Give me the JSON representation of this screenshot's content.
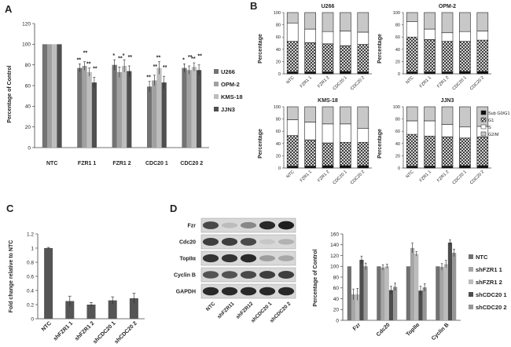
{
  "panels": {
    "A": "A",
    "B": "B",
    "C": "C",
    "D": "D"
  },
  "colors": {
    "series": [
      "#737373",
      "#a0a0a0",
      "#bdbdbd",
      "#4f4f4f"
    ],
    "d_series": [
      "#707070",
      "#a6a6a6",
      "#bcbcbc",
      "#4d4d4d",
      "#969696"
    ],
    "bar_c": "#555555"
  },
  "chart_data": [
    {
      "id": "A",
      "type": "bar",
      "ylabel": "Percentage of Control",
      "ylim": [
        0,
        120
      ],
      "yticks": [
        0,
        20,
        40,
        60,
        80,
        100,
        120
      ],
      "categories": [
        "NTC",
        "FZR1 1",
        "FZR1 2",
        "CDC20 1",
        "CDC20 2"
      ],
      "series": [
        {
          "name": "U266",
          "values": [
            100,
            77,
            80,
            59,
            77
          ],
          "errors": [
            0,
            4,
            5,
            5,
            4
          ]
        },
        {
          "name": "OPM-2",
          "values": [
            100,
            79,
            73,
            65,
            75
          ],
          "errors": [
            0,
            4,
            5,
            5,
            4
          ]
        },
        {
          "name": "KMS-18",
          "values": [
            100,
            73,
            79,
            77,
            78
          ],
          "errors": [
            0,
            4,
            6,
            6,
            4
          ]
        },
        {
          "name": "JJN3",
          "values": [
            100,
            63,
            74,
            63,
            75
          ],
          "errors": [
            0,
            5,
            5,
            6,
            5
          ]
        }
      ],
      "stars": [
        [
          "",
          "",
          "",
          ""
        ],
        [
          "**",
          "**",
          "**",
          "**"
        ],
        [
          "*",
          "**",
          "*",
          "**"
        ],
        [
          "**",
          "**",
          "**",
          "**"
        ],
        [
          "*",
          "**",
          "**",
          "**"
        ]
      ]
    },
    {
      "id": "B",
      "type": "bar",
      "stacked": true,
      "ylabel": "Percentage",
      "ylim": [
        0,
        100
      ],
      "yticks": [
        0,
        20,
        40,
        60,
        80,
        100
      ],
      "categories": [
        "NTC",
        "FZR1 1",
        "FZR1 2",
        "CDC20 1",
        "CDC20 2"
      ],
      "legend": [
        "Sub G0/G1",
        "G1",
        "S",
        "G2/M"
      ],
      "subplots": [
        {
          "title": "U266",
          "subg1": [
            3,
            3,
            3,
            4,
            3
          ],
          "g1": [
            50,
            48,
            46,
            42,
            45
          ],
          "s": [
            30,
            22,
            20,
            24,
            20
          ]
        },
        {
          "title": "OPM-2",
          "subg1": [
            3,
            3,
            3,
            4,
            4
          ],
          "g1": [
            57,
            53,
            50,
            49,
            51
          ],
          "s": [
            25,
            17,
            14,
            16,
            15
          ]
        },
        {
          "title": "KMS-18",
          "subg1": [
            3,
            3,
            4,
            4,
            4
          ],
          "g1": [
            50,
            43,
            37,
            38,
            38
          ],
          "s": [
            26,
            29,
            31,
            30,
            23
          ]
        },
        {
          "title": "JJN3",
          "subg1": [
            3,
            3,
            3,
            4,
            4
          ],
          "g1": [
            52,
            49,
            48,
            45,
            47
          ],
          "s": [
            22,
            25,
            20,
            18,
            17
          ]
        }
      ]
    },
    {
      "id": "C",
      "type": "bar",
      "ylabel": "Fold change relative to NTC",
      "ylim": [
        0,
        1.2
      ],
      "yticks": [
        "0",
        "0.2",
        "0.4",
        "0.6",
        "0.8",
        "1",
        "1.2"
      ],
      "categories": [
        "NTC",
        "shFZR1 1",
        "shFZR1 2",
        "shCDC20 1",
        "shCDC20 2"
      ],
      "values": [
        1.0,
        0.25,
        0.2,
        0.26,
        0.29
      ],
      "errors": [
        0.01,
        0.07,
        0.03,
        0.05,
        0.07
      ]
    },
    {
      "id": "D",
      "type": "bar",
      "ylabel": "Percentage of Control",
      "ylim": [
        0,
        160
      ],
      "yticks": [
        0,
        20,
        40,
        60,
        80,
        100,
        120,
        140,
        160
      ],
      "categories": [
        "Fzr",
        "Cdc20",
        "TopIIα",
        "Cyclin B"
      ],
      "series": [
        {
          "name": "NTC",
          "values": [
            100,
            100,
            100,
            100
          ],
          "errors": [
            0,
            0,
            0,
            0
          ]
        },
        {
          "name": "shFZR1 1",
          "values": [
            48,
            98,
            134,
            99
          ],
          "errors": [
            10,
            5,
            9,
            6
          ]
        },
        {
          "name": "shFZR1 2",
          "values": [
            48,
            100,
            123,
            104
          ],
          "errors": [
            11,
            4,
            4,
            7
          ]
        },
        {
          "name": "shCDC20 1",
          "values": [
            112,
            56,
            55,
            144
          ],
          "errors": [
            7,
            7,
            8,
            5
          ]
        },
        {
          "name": "shCDC20 2",
          "values": [
            100,
            62,
            61,
            125
          ],
          "errors": [
            6,
            7,
            7,
            7
          ]
        }
      ]
    }
  ],
  "blot": {
    "bands": [
      "Fzr",
      "Cdc20",
      "TopIIα",
      "Cyclin B",
      "GAPDH"
    ],
    "lanes": [
      "NTC",
      "shFZR11",
      "shFZR12",
      "shCDC20 1",
      "shCDC20 2"
    ],
    "intensity": [
      [
        0.75,
        0.2,
        0.45,
        0.9,
        0.95
      ],
      [
        0.8,
        0.8,
        0.75,
        0.15,
        0.25
      ],
      [
        0.85,
        0.85,
        0.9,
        0.35,
        0.3
      ],
      [
        0.7,
        0.7,
        0.75,
        0.8,
        0.8
      ],
      [
        0.9,
        0.9,
        0.9,
        0.9,
        0.9
      ]
    ]
  }
}
